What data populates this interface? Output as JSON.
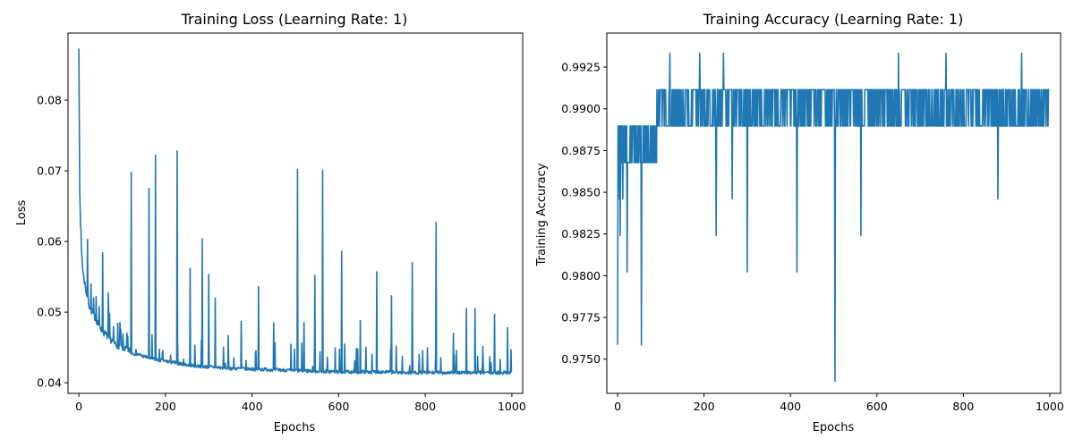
{
  "chart_data": [
    {
      "type": "line",
      "title": "Training Loss (Learning Rate: 1)",
      "xlabel": "Epochs",
      "ylabel": "Loss",
      "xlim": [
        -25,
        1025
      ],
      "ylim": [
        0.0385,
        0.0895
      ],
      "xticks": [
        0,
        200,
        400,
        600,
        800,
        1000
      ],
      "yticks": [
        0.04,
        0.05,
        0.06,
        0.07,
        0.08
      ],
      "ytick_labels": [
        "0.04",
        "0.05",
        "0.06",
        "0.07",
        "0.08"
      ],
      "grid": false,
      "color": "#1f77b4",
      "series": [
        {
          "x": [
            0,
            2,
            4,
            6,
            8,
            10,
            14,
            18,
            22,
            28,
            35,
            45,
            55,
            70,
            85,
            100,
            120,
            140,
            160,
            180,
            200,
            230,
            260,
            300,
            350,
            400,
            450,
            500,
            550,
            600,
            650,
            700,
            750,
            800,
            850,
            900,
            950,
            999
          ],
          "values": [
            0.0873,
            0.0675,
            0.062,
            0.0585,
            0.0565,
            0.055,
            0.0535,
            0.052,
            0.0508,
            0.0498,
            0.049,
            0.0478,
            0.0468,
            0.0458,
            0.045,
            0.0445,
            0.044,
            0.0437,
            0.0433,
            0.043,
            0.0428,
            0.0425,
            0.0422,
            0.042,
            0.0418,
            0.0417,
            0.0416,
            0.0415,
            0.0414,
            0.0413,
            0.0413,
            0.0413,
            0.0412,
            0.0412,
            0.0412,
            0.0412,
            0.0412,
            0.0412
          ]
        }
      ],
      "spikes": [
        {
          "x": 5,
          "y": 0.0617
        },
        {
          "x": 20,
          "y": 0.0603
        },
        {
          "x": 28,
          "y": 0.054
        },
        {
          "x": 40,
          "y": 0.0522
        },
        {
          "x": 55,
          "y": 0.0584
        },
        {
          "x": 68,
          "y": 0.0527
        },
        {
          "x": 95,
          "y": 0.0485
        },
        {
          "x": 121,
          "y": 0.0698
        },
        {
          "x": 162,
          "y": 0.0675
        },
        {
          "x": 177,
          "y": 0.0722
        },
        {
          "x": 227,
          "y": 0.0728
        },
        {
          "x": 257,
          "y": 0.0562
        },
        {
          "x": 285,
          "y": 0.0604
        },
        {
          "x": 300,
          "y": 0.0553
        },
        {
          "x": 315,
          "y": 0.052
        },
        {
          "x": 345,
          "y": 0.0467
        },
        {
          "x": 375,
          "y": 0.0487
        },
        {
          "x": 415,
          "y": 0.0536
        },
        {
          "x": 450,
          "y": 0.0485
        },
        {
          "x": 505,
          "y": 0.0702
        },
        {
          "x": 520,
          "y": 0.0485
        },
        {
          "x": 545,
          "y": 0.0552
        },
        {
          "x": 563,
          "y": 0.0701
        },
        {
          "x": 607,
          "y": 0.0586
        },
        {
          "x": 650,
          "y": 0.0488
        },
        {
          "x": 688,
          "y": 0.0557
        },
        {
          "x": 722,
          "y": 0.0523
        },
        {
          "x": 770,
          "y": 0.057
        },
        {
          "x": 825,
          "y": 0.0627
        },
        {
          "x": 865,
          "y": 0.047
        },
        {
          "x": 895,
          "y": 0.0505
        },
        {
          "x": 915,
          "y": 0.0505
        },
        {
          "x": 960,
          "y": 0.0497
        },
        {
          "x": 990,
          "y": 0.0478
        },
        {
          "x": 998,
          "y": 0.0447
        }
      ]
    },
    {
      "type": "line",
      "title": "Training Accuracy (Learning Rate: 1)",
      "xlabel": "Epochs",
      "ylabel": "Training Accuracy",
      "xlim": [
        -25,
        1025
      ],
      "ylim": [
        0.97295,
        0.99454
      ],
      "xticks": [
        0,
        200,
        400,
        600,
        800,
        1000
      ],
      "yticks": [
        0.975,
        0.9775,
        0.98,
        0.9825,
        0.985,
        0.9875,
        0.99,
        0.9925
      ],
      "ytick_labels": [
        "0.9750",
        "0.9775",
        "0.9800",
        "0.9825",
        "0.9850",
        "0.9875",
        "0.9900",
        "0.9925"
      ],
      "grid": false,
      "color": "#1f77b4",
      "levels": [
        0.97586,
        0.98023,
        0.98241,
        0.9846,
        0.98678,
        0.98897,
        0.99115,
        0.99333
      ],
      "min_point": {
        "x": 503,
        "y": 0.97368
      },
      "series": [
        {
          "x": [
            0,
            2,
            4,
            6,
            8,
            12,
            18,
            22,
            28,
            35,
            45,
            55,
            65,
            80,
            90,
            100,
            121,
            140,
            160,
            190,
            228,
            245,
            265,
            300,
            350,
            415,
            503,
            545,
            563,
            600,
            650,
            700,
            760,
            800,
            850,
            880,
            935,
            999
          ],
          "values": [
            0.97586,
            0.9846,
            0.98678,
            0.98241,
            0.98678,
            0.9846,
            0.98678,
            0.98023,
            0.98678,
            0.98897,
            0.98678,
            0.97586,
            0.98678,
            0.98897,
            0.98678,
            0.99115,
            0.99333,
            0.98897,
            0.99115,
            0.99333,
            0.98241,
            0.99333,
            0.9846,
            0.98023,
            0.99115,
            0.98023,
            0.97368,
            0.99115,
            0.98241,
            0.98897,
            0.99333,
            0.99115,
            0.99333,
            0.98897,
            0.99115,
            0.9846,
            0.99333,
            0.99115
          ]
        }
      ]
    }
  ]
}
